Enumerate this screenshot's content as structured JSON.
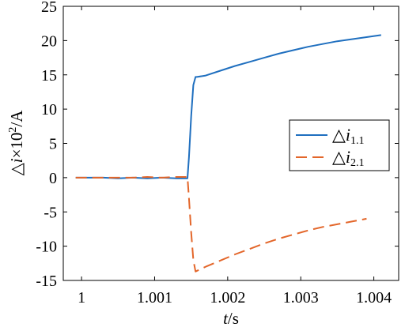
{
  "chart_data": {
    "type": "line",
    "xlabel_italic": "t",
    "xlabel_unit": "/s",
    "ylabel_prefix": "△",
    "ylabel_italic": "i",
    "ylabel_mid": "×10",
    "ylabel_sup": "2",
    "ylabel_unit": "/A",
    "xlim": [
      0.99975,
      1.00434
    ],
    "ylim": [
      -15,
      25
    ],
    "xticks": [
      1,
      1.001,
      1.002,
      1.003,
      1.004
    ],
    "xtick_labels": [
      "1",
      "1.001",
      "1.002",
      "1.003",
      "1.004"
    ],
    "yticks": [
      -15,
      -10,
      -5,
      0,
      5,
      10,
      15,
      20,
      25
    ],
    "ytick_labels": [
      "-15",
      "-10",
      "-5",
      "0",
      "5",
      "10",
      "15",
      "20",
      "25"
    ],
    "legend_position": "right",
    "series": [
      {
        "name_symbol": "△",
        "name_italic": "i",
        "name_sub": "1.1",
        "color": "#1f6fbf",
        "dash": "solid",
        "x": [
          0.99992,
          1.0001,
          1.0003,
          1.0005,
          1.0007,
          1.0009,
          1.0011,
          1.0013,
          1.00145,
          1.00147,
          1.0015,
          1.00153,
          1.00156,
          1.00158,
          1.0017,
          1.0019,
          1.0021,
          1.0023,
          1.0025,
          1.0027,
          1.0029,
          1.0031,
          1.0033,
          1.0035,
          1.0037,
          1.0039,
          1.0041
        ],
        "y": [
          0.0,
          0.0,
          0.0,
          -0.1,
          0.0,
          -0.1,
          0.0,
          -0.1,
          -0.1,
          3.0,
          9.0,
          13.5,
          14.7,
          14.7,
          14.9,
          15.6,
          16.3,
          16.9,
          17.5,
          18.1,
          18.6,
          19.1,
          19.5,
          19.9,
          20.2,
          20.5,
          20.8
        ]
      },
      {
        "name_symbol": "△",
        "name_italic": "i",
        "name_sub": "2.1",
        "color": "#e3662a",
        "dash": "dashed",
        "x": [
          0.99992,
          1.0001,
          1.0003,
          1.0005,
          1.0007,
          1.0009,
          1.0011,
          1.0013,
          1.00145,
          1.00147,
          1.0015,
          1.00153,
          1.00156,
          1.0017,
          1.0019,
          1.0021,
          1.0023,
          1.0025,
          1.0027,
          1.0029,
          1.0031,
          1.0033,
          1.0035,
          1.0037,
          1.0039
        ],
        "y": [
          0.0,
          0.0,
          0.0,
          0.0,
          0.0,
          0.1,
          0.0,
          0.1,
          0.1,
          -3.0,
          -8.0,
          -12.0,
          -13.7,
          -13.0,
          -12.1,
          -11.2,
          -10.4,
          -9.6,
          -8.9,
          -8.3,
          -7.7,
          -7.2,
          -6.8,
          -6.4,
          -6.0
        ]
      }
    ]
  }
}
